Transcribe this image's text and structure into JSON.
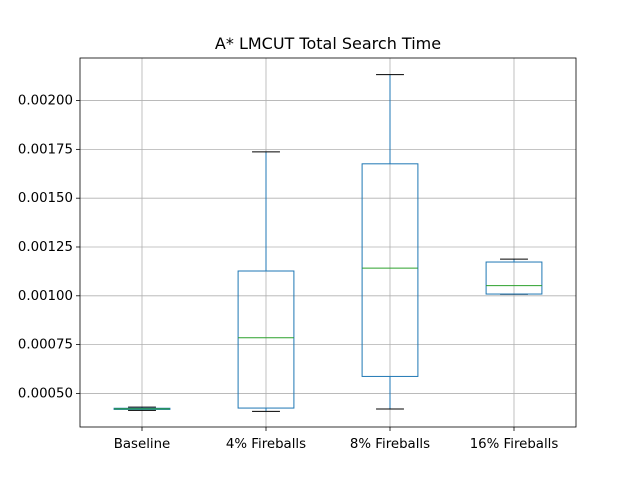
{
  "chart_data": {
    "type": "box",
    "title": "A* LMCUT Total Search Time",
    "categories": [
      "Baseline",
      "4% Fireballs",
      "8% Fireballs",
      "16% Fireballs"
    ],
    "boxes": [
      {
        "whislo": 0.000413,
        "q1": 0.000418,
        "med": 0.000421,
        "q3": 0.000424,
        "whishi": 0.00043
      },
      {
        "whislo": 0.000408,
        "q1": 0.000425,
        "med": 0.000785,
        "q3": 0.001127,
        "whishi": 0.001737
      },
      {
        "whislo": 0.00042,
        "q1": 0.000587,
        "med": 0.001142,
        "q3": 0.001676,
        "whishi": 0.002133
      },
      {
        "whislo": 0.001008,
        "q1": 0.001009,
        "med": 0.001052,
        "q3": 0.001173,
        "whishi": 0.001188
      }
    ],
    "ylim": [
      0.000328,
      0.002218
    ],
    "yticks": [
      0.0005,
      0.00075,
      0.001,
      0.00125,
      0.0015,
      0.00175,
      0.002
    ],
    "ytick_labels": [
      "0.00050",
      "0.00075",
      "0.00100",
      "0.00125",
      "0.00150",
      "0.00175",
      "0.00200"
    ],
    "xlabel": "",
    "ylabel": "",
    "grid": true,
    "colors": {
      "box": "#1f77b4",
      "median": "#2ca02c",
      "cap": "#000000",
      "grid": "#b0b0b0"
    }
  }
}
